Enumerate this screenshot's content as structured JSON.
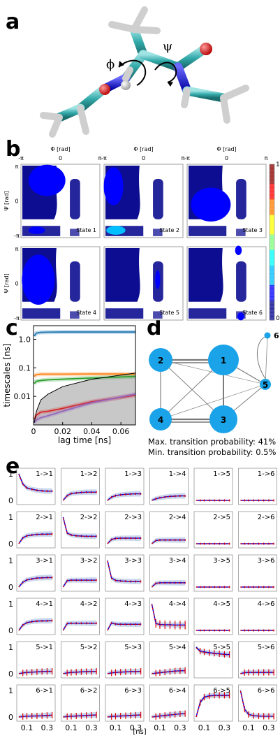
{
  "panels": {
    "a": "a",
    "b": "b",
    "c": "c",
    "d": "d",
    "e": "e"
  },
  "molecule": {
    "phi_label": "ϕ",
    "psi_label": "ψ"
  },
  "panel_b": {
    "phi_axis_label": "Φ [rad]",
    "psi_axis_label": "Ψ [rad]",
    "tick_neg_pi": "-π",
    "tick_zero": "0",
    "tick_pi": "π",
    "states": [
      "State 1",
      "State 2",
      "State 3",
      "State 4",
      "State 5",
      "State 6"
    ],
    "colorbar_max": "1",
    "colorbar_min": "0",
    "colormap": [
      "#00008b",
      "#0000ff",
      "#00bfff",
      "#00ffff",
      "#7fff7f",
      "#ffff00",
      "#ff7f00",
      "#ff0000",
      "#8b0000"
    ]
  },
  "chart_data": [
    {
      "type": "line",
      "panel": "c",
      "ylabel": "timescales [ns]",
      "xlabel": "lag time [ns]",
      "yscale": "log",
      "xticks": [
        "0",
        "0.02",
        "0.04",
        "0.06"
      ],
      "yticks": [
        "1.0",
        "0.1",
        "0.01"
      ],
      "xlim": [
        0,
        0.07
      ],
      "ylim": [
        0.001,
        3
      ],
      "series": [
        {
          "color": "#1f77b4",
          "x": [
            0.0005,
            0.002,
            0.005,
            0.01,
            0.02,
            0.04,
            0.07
          ],
          "y": [
            1.3,
            1.65,
            1.75,
            1.78,
            1.8,
            1.8,
            1.8
          ]
        },
        {
          "color": "#ff7f0e",
          "x": [
            0.0005,
            0.002,
            0.005,
            0.01,
            0.02,
            0.04,
            0.07
          ],
          "y": [
            0.05,
            0.058,
            0.06,
            0.06,
            0.06,
            0.061,
            0.061
          ]
        },
        {
          "color": "#2ca02c",
          "x": [
            0.0005,
            0.002,
            0.005,
            0.01,
            0.02,
            0.04,
            0.07
          ],
          "y": [
            0.028,
            0.034,
            0.036,
            0.038,
            0.04,
            0.044,
            0.05
          ]
        },
        {
          "color": "#d62728",
          "x": [
            0.0005,
            0.002,
            0.005,
            0.01,
            0.02,
            0.04,
            0.07
          ],
          "y": [
            0.0016,
            0.0022,
            0.0028,
            0.003,
            0.0038,
            0.0065,
            0.011
          ]
        },
        {
          "color": "#9467bd",
          "x": [
            0.0005,
            0.002,
            0.005,
            0.01,
            0.02,
            0.04,
            0.07
          ],
          "y": [
            0.0012,
            0.0015,
            0.0018,
            0.0021,
            0.003,
            0.006,
            0.012
          ]
        },
        {
          "color": "#000000",
          "x": [
            0.0005,
            0.002,
            0.005,
            0.01,
            0.02,
            0.04,
            0.07
          ],
          "y": [
            0.0012,
            0.003,
            0.0075,
            0.012,
            0.022,
            0.04,
            0.066
          ]
        }
      ]
    },
    {
      "type": "network",
      "panel": "d",
      "nodes": [
        {
          "label": "1",
          "size": 1.0
        },
        {
          "label": "2",
          "size": 0.75
        },
        {
          "label": "3",
          "size": 0.9
        },
        {
          "label": "4",
          "size": 0.7
        },
        {
          "label": "5",
          "size": 0.35
        },
        {
          "label": "6",
          "size": 0.18
        }
      ],
      "max_note": "Max. transition probability: 41%",
      "min_note": "Min. transition probability: 0.5%"
    },
    {
      "type": "line",
      "panel": "e",
      "xlabel": "[ns]",
      "yticks": [
        "1",
        "0"
      ],
      "xticks": [
        "0.1",
        "0.3"
      ],
      "labels": [
        [
          "1->1",
          "1->2",
          "1->3",
          "1->4",
          "1->5",
          "1->6"
        ],
        [
          "2->1",
          "2->2",
          "2->3",
          "2->4",
          "2->5",
          "2->6"
        ],
        [
          "3->1",
          "3->2",
          "3->3",
          "3->4",
          "3->5",
          "3->6"
        ],
        [
          "4->1",
          "4->2",
          "4->3",
          "4->4",
          "4->5",
          "4->6"
        ],
        [
          "5->1",
          "5->2",
          "5->3",
          "5->4",
          "5->5",
          "5->6"
        ],
        [
          "6->1",
          "6->2",
          "6->3",
          "6->4",
          "6->5",
          "6->6"
        ]
      ],
      "x": [
        0.02,
        0.06,
        0.1,
        0.15,
        0.2,
        0.25,
        0.3,
        0.35
      ],
      "values": [
        [
          [
            1.0,
            0.62,
            0.47,
            0.42,
            0.38,
            0.36,
            0.35,
            0.35
          ],
          [
            0.0,
            0.18,
            0.26,
            0.28,
            0.3,
            0.31,
            0.31,
            0.31
          ],
          [
            0.0,
            0.12,
            0.18,
            0.21,
            0.23,
            0.24,
            0.25,
            0.25
          ],
          [
            0.0,
            0.06,
            0.1,
            0.13,
            0.15,
            0.16,
            0.17,
            0.17
          ],
          [
            0.0,
            0.0,
            0.0,
            0.0,
            0.0,
            0.0,
            0.0,
            0.0
          ],
          [
            0.0,
            0.0,
            0.0,
            0.0,
            0.0,
            0.0,
            0.0,
            0.0
          ]
        ],
        [
          [
            0.0,
            0.22,
            0.3,
            0.33,
            0.35,
            0.36,
            0.36,
            0.37
          ],
          [
            1.0,
            0.4,
            0.33,
            0.3,
            0.29,
            0.28,
            0.28,
            0.28
          ],
          [
            0.0,
            0.16,
            0.2,
            0.21,
            0.21,
            0.21,
            0.21,
            0.21
          ],
          [
            0.0,
            0.12,
            0.14,
            0.14,
            0.14,
            0.14,
            0.14,
            0.14
          ],
          [
            0.0,
            0.0,
            0.0,
            0.0,
            0.0,
            0.0,
            0.0,
            0.0
          ],
          [
            0.0,
            0.0,
            0.0,
            0.0,
            0.0,
            0.0,
            0.0,
            0.0
          ]
        ],
        [
          [
            0.0,
            0.18,
            0.27,
            0.31,
            0.34,
            0.35,
            0.36,
            0.36
          ],
          [
            0.0,
            0.24,
            0.26,
            0.26,
            0.26,
            0.26,
            0.26,
            0.26
          ],
          [
            1.0,
            0.34,
            0.25,
            0.23,
            0.22,
            0.21,
            0.21,
            0.21
          ],
          [
            0.0,
            0.14,
            0.16,
            0.16,
            0.16,
            0.16,
            0.16,
            0.16
          ],
          [
            0.0,
            0.0,
            0.0,
            0.0,
            0.0,
            0.0,
            0.0,
            0.0
          ],
          [
            0.0,
            0.0,
            0.0,
            0.0,
            0.0,
            0.0,
            0.0,
            0.0
          ]
        ],
        [
          [
            0.0,
            0.2,
            0.29,
            0.33,
            0.35,
            0.36,
            0.36,
            0.37
          ],
          [
            0.0,
            0.26,
            0.27,
            0.27,
            0.27,
            0.27,
            0.27,
            0.27
          ],
          [
            0.0,
            0.28,
            0.24,
            0.23,
            0.23,
            0.23,
            0.23,
            0.23
          ],
          [
            1.0,
            0.26,
            0.22,
            0.21,
            0.21,
            0.2,
            0.2,
            0.2
          ],
          [
            0.0,
            0.0,
            0.0,
            0.0,
            0.0,
            0.0,
            0.0,
            0.0
          ],
          [
            0.0,
            0.0,
            0.0,
            0.0,
            0.0,
            0.0,
            0.0,
            0.0
          ]
        ],
        [
          [
            0.0,
            0.03,
            0.05,
            0.06,
            0.07,
            0.08,
            0.09,
            0.09
          ],
          [
            0.0,
            0.03,
            0.05,
            0.06,
            0.07,
            0.08,
            0.08,
            0.09
          ],
          [
            0.0,
            0.03,
            0.05,
            0.06,
            0.07,
            0.08,
            0.08,
            0.09
          ],
          [
            0.0,
            0.02,
            0.04,
            0.06,
            0.08,
            0.1,
            0.11,
            0.12
          ],
          [
            1.0,
            0.85,
            0.82,
            0.79,
            0.77,
            0.75,
            0.73,
            0.72
          ],
          [
            0.0,
            0.04,
            0.05,
            0.05,
            0.05,
            0.05,
            0.05,
            0.05
          ]
        ],
        [
          [
            0.0,
            0.02,
            0.03,
            0.04,
            0.04,
            0.05,
            0.06,
            0.07
          ],
          [
            0.0,
            0.02,
            0.03,
            0.04,
            0.05,
            0.06,
            0.07,
            0.08
          ],
          [
            0.0,
            0.02,
            0.03,
            0.04,
            0.05,
            0.06,
            0.07,
            0.08
          ],
          [
            0.0,
            0.02,
            0.04,
            0.06,
            0.08,
            0.1,
            0.12,
            0.13
          ],
          [
            0.0,
            0.55,
            0.75,
            0.8,
            0.82,
            0.82,
            0.82,
            0.82
          ],
          [
            1.0,
            0.3,
            0.1,
            0.05,
            0.04,
            0.03,
            0.03,
            0.03
          ]
        ]
      ]
    }
  ]
}
